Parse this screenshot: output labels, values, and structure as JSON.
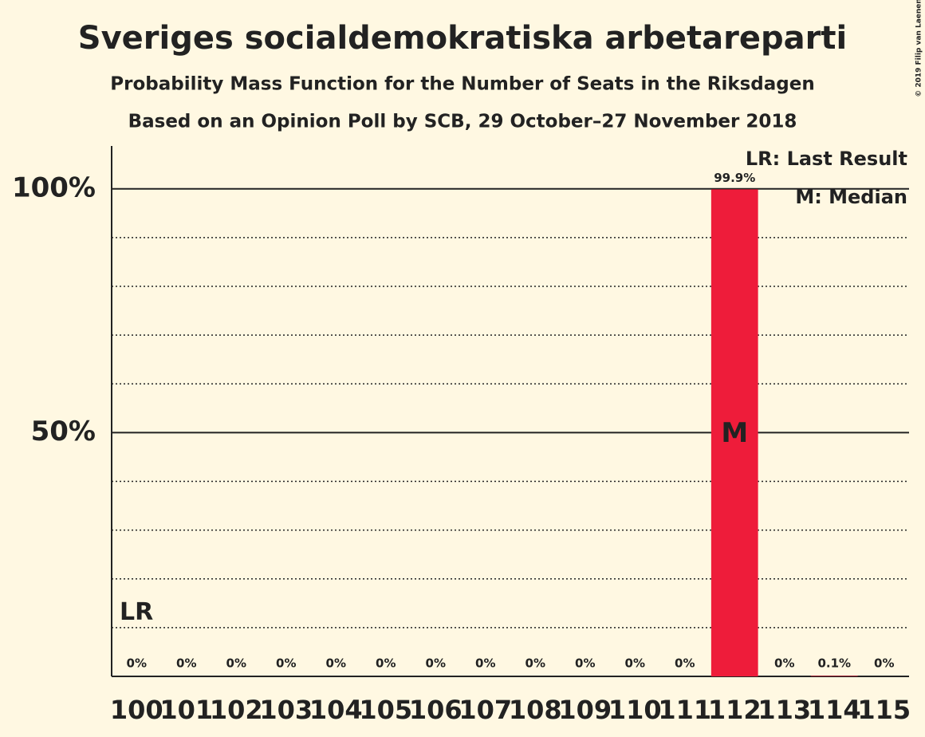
{
  "chart_data": {
    "type": "bar",
    "title": "Sveriges socialdemokratiska arbetareparti",
    "subtitle": "Probability Mass Function for the Number of Seats in the Riksdagen",
    "subtitle2": "Based on an Opinion Poll by SCB, 29 October–27 November 2018",
    "copyright": "© 2019 Filip van Laenen",
    "legend": [
      "LR: Last Result",
      "M: Median"
    ],
    "categories": [
      100,
      101,
      102,
      103,
      104,
      105,
      106,
      107,
      108,
      109,
      110,
      111,
      112,
      113,
      114,
      115
    ],
    "values": [
      0,
      0,
      0,
      0,
      0,
      0,
      0,
      0,
      0,
      0,
      0,
      0,
      99.9,
      0,
      0.1,
      0
    ],
    "value_labels": [
      "0%",
      "0%",
      "0%",
      "0%",
      "0%",
      "0%",
      "0%",
      "0%",
      "0%",
      "0%",
      "0%",
      "0%",
      "99.9%",
      "0%",
      "0.1%",
      "0%"
    ],
    "color": "#ee1c3a",
    "ylim": [
      0,
      108.8
    ],
    "yticks": [
      {
        "value": 50,
        "label": "50%"
      },
      {
        "value": 100,
        "label": "100%"
      }
    ],
    "minor_gridlines": [
      10,
      20,
      30,
      40,
      60,
      70,
      80,
      90
    ],
    "annotations": [
      {
        "text": "LR",
        "x": 100
      },
      {
        "text": "M",
        "x": 112
      }
    ],
    "grid": true
  }
}
